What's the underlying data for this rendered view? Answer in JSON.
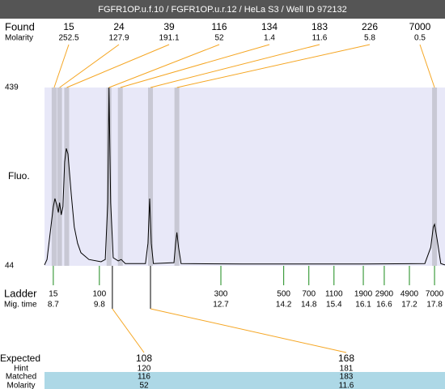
{
  "chart_data": {
    "type": "line",
    "title": "FGFR1OP.u.f.10 / FGFR1OP.u.r.12 / HeLa S3 / Well ID 972132",
    "y_label": "Fluo.",
    "ylim": [
      44,
      439
    ],
    "yticks": [
      44,
      439
    ],
    "xlim": [
      8.49,
      18.05
    ],
    "color": "#000000",
    "x": [
      8.49,
      8.55,
      8.62,
      8.7,
      8.74,
      8.78,
      8.82,
      8.85,
      8.89,
      8.93,
      8.97,
      9.01,
      9.05,
      9.13,
      9.2,
      9.28,
      9.36,
      9.55,
      9.84,
      9.94,
      10.0,
      10.03,
      10.07,
      10.13,
      10.25,
      10.32,
      10.42,
      10.9,
      10.96,
      11.0,
      11.04,
      11.09,
      11.58,
      11.62,
      11.65,
      11.69,
      11.75,
      13.22,
      16.12,
      17.57,
      17.71,
      17.77,
      17.8,
      17.86,
      17.95,
      18.05
    ],
    "values": [
      46,
      58,
      112,
      175,
      193,
      180,
      162,
      184,
      157,
      175,
      274,
      304,
      292,
      202,
      130,
      94,
      73,
      58,
      53,
      58,
      184,
      439,
      184,
      62,
      55,
      58,
      49,
      49,
      94,
      193,
      94,
      49,
      51,
      94,
      118,
      85,
      49,
      48,
      48,
      49,
      85,
      130,
      136,
      103,
      49,
      46
    ],
    "found": {
      "label": "Found",
      "molarity_label": "Molarity",
      "sizes": [
        15,
        24,
        39,
        116,
        134,
        183,
        226,
        7000
      ],
      "molarity": [
        252.5,
        127.9,
        191.1,
        52,
        1.4,
        11.6,
        5.8,
        0.5
      ],
      "x": [
        8.72,
        8.85,
        9.02,
        10.03,
        10.3,
        11.02,
        11.65,
        17.8
      ],
      "color": "#f5a623",
      "band_color": "#c8c8d4"
    },
    "ladder": {
      "label": "Ladder",
      "time_label": "Mig. time",
      "sizes": [
        15,
        100,
        300,
        500,
        700,
        1100,
        1900,
        2900,
        4900,
        7000
      ],
      "times": [
        8.7,
        9.8,
        12.7,
        14.2,
        14.8,
        15.4,
        16.1,
        16.6,
        17.2,
        17.8
      ],
      "color": "#1a8a1a"
    },
    "expected": {
      "label": "Expected",
      "hint_label": "Hint",
      "matched_label": "Matched",
      "molarity_label": "Molarity",
      "sizes": [
        108,
        168
      ],
      "hint": [
        120,
        181
      ],
      "matched": [
        116,
        183
      ],
      "molarity": [
        52,
        11.6
      ],
      "x": [
        10.11,
        11.02
      ],
      "color": "#f5a623"
    }
  }
}
